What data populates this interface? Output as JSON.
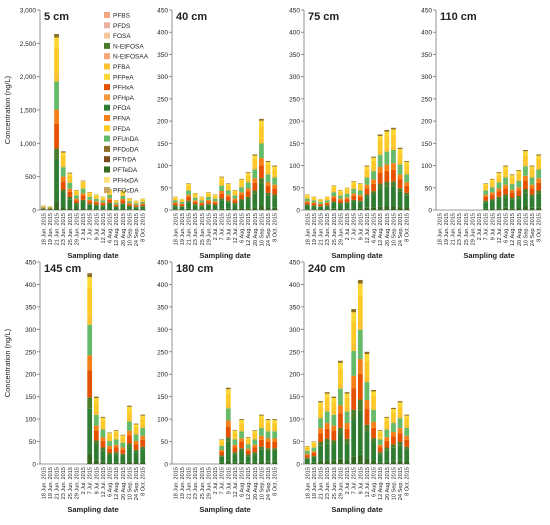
{
  "chart_data": {
    "type": "bar",
    "stacked": true,
    "ylabel": "Concentration (ng/L)",
    "xlabel": "Sampling date",
    "legend": {
      "placement": "inside first panel, right side",
      "entries": [
        {
          "name": "PFBS",
          "color": "#f4a582"
        },
        {
          "name": "PFDS",
          "color": "#e7b0a0"
        },
        {
          "name": "FOSA",
          "color": "#f6c79a"
        },
        {
          "name": "N-EtFOSA",
          "color": "#4a7c2b"
        },
        {
          "name": "N-EtFOSAA",
          "color": "#f4a67a"
        },
        {
          "name": "PFBA",
          "color": "#fbc02d"
        },
        {
          "name": "PFPeA",
          "color": "#fdd835"
        },
        {
          "name": "PFHxA",
          "color": "#e65100"
        },
        {
          "name": "PFHpA",
          "color": "#f39a3c"
        },
        {
          "name": "PFOA",
          "color": "#2e7d32"
        },
        {
          "name": "PFNA",
          "color": "#f57f17"
        },
        {
          "name": "PFDA",
          "color": "#ffca28"
        },
        {
          "name": "PFUnDA",
          "color": "#66bb6a"
        },
        {
          "name": "PFDoDA",
          "color": "#8d6e27"
        },
        {
          "name": "PFTrDA",
          "color": "#7a4a1a"
        },
        {
          "name": "PFTeDA",
          "color": "#33691e"
        },
        {
          "name": "PFHxDA",
          "color": "#ffe082"
        },
        {
          "name": "PFOcDA",
          "color": "#c8a35a"
        }
      ]
    },
    "dates": [
      "18 Jun. 2015",
      "19 Jun. 2015",
      "21 Jun. 2015",
      "23 Jun. 2015",
      "25 Jun. 2015",
      "29 Jun. 2015",
      "2 Jul. 2015",
      "7 Jul. 2015",
      "9 Jul. 2015",
      "12 Jul. 2015",
      "6 Aug. 2015",
      "12 Aug. 2015",
      "20 Aug. 2015",
      "10 Sep. 2015",
      "24 Sep. 2015",
      "8 Oct. 2015"
    ],
    "dates_odd": [
      "18 Jun. 2015",
      "21 Jun. 2015",
      "25 Jun. 2015",
      "2 Jul. 2015",
      "9 Jul. 2015",
      "6 Aug. 2015",
      "20 Aug. 2015",
      "24 Sep. 2015"
    ],
    "dates_even": [
      "19 Jun. 2015",
      "23 Jun. 2015",
      "29 Jun. 2015",
      "7 Jul. 2015",
      "12 Jul. 2015",
      "12 Aug. 2015",
      "10 Sep. 2015",
      "8 Oct. 2015"
    ],
    "panels": [
      {
        "title": "5 cm",
        "ylim": [
          0,
          3000
        ],
        "yticks": [
          "0",
          "500",
          "1,000",
          "1,500",
          "2,000",
          "2,500",
          "3,000"
        ],
        "totals": [
          70,
          60,
          2640,
          880,
          560,
          300,
          440,
          270,
          230,
          200,
          310,
          150,
          290,
          180,
          140,
          170
        ]
      },
      {
        "title": "40 cm",
        "ylim": [
          0,
          450
        ],
        "yticks": [
          "0",
          "50",
          "100",
          "150",
          "200",
          "250",
          "300",
          "350",
          "400",
          "450"
        ],
        "totals": [
          30,
          25,
          60,
          38,
          30,
          40,
          35,
          75,
          60,
          45,
          70,
          85,
          125,
          205,
          110,
          100
        ]
      },
      {
        "title": "75 cm",
        "ylim": [
          0,
          450
        ],
        "yticks": [
          "0",
          "50",
          "100",
          "150",
          "200",
          "250",
          "300",
          "350",
          "400",
          "450"
        ],
        "totals": [
          35,
          30,
          25,
          30,
          55,
          45,
          50,
          65,
          60,
          100,
          120,
          170,
          180,
          185,
          140,
          110
        ]
      },
      {
        "title": "110 cm",
        "ylim": [
          0,
          450
        ],
        "yticks": [
          "0",
          "50",
          "100",
          "150",
          "200",
          "250",
          "300",
          "350",
          "400",
          "450"
        ],
        "totals": [
          0,
          0,
          0,
          0,
          0,
          0,
          0,
          60,
          70,
          85,
          100,
          80,
          90,
          135,
          100,
          125
        ]
      },
      {
        "title": "145 cm",
        "ylim": [
          0,
          450
        ],
        "yticks": [
          "0",
          "50",
          "100",
          "150",
          "200",
          "250",
          "300",
          "350",
          "400",
          "450"
        ],
        "totals": [
          0,
          0,
          0,
          0,
          0,
          0,
          0,
          425,
          150,
          105,
          70,
          75,
          65,
          130,
          90,
          110
        ]
      },
      {
        "title": "180 cm",
        "ylim": [
          0,
          450
        ],
        "yticks": [
          "0",
          "50",
          "100",
          "150",
          "200",
          "250",
          "300",
          "350",
          "400",
          "450"
        ],
        "totals": [
          0,
          0,
          0,
          0,
          0,
          0,
          0,
          55,
          170,
          75,
          100,
          60,
          75,
          110,
          100,
          100
        ]
      },
      {
        "title": "240 cm",
        "ylim": [
          0,
          450
        ],
        "yticks": [
          "0",
          "50",
          "100",
          "150",
          "200",
          "250",
          "300",
          "350",
          "400",
          "450"
        ],
        "totals": [
          40,
          50,
          140,
          160,
          150,
          230,
          160,
          345,
          410,
          250,
          165,
          75,
          105,
          125,
          140,
          110
        ]
      }
    ]
  }
}
